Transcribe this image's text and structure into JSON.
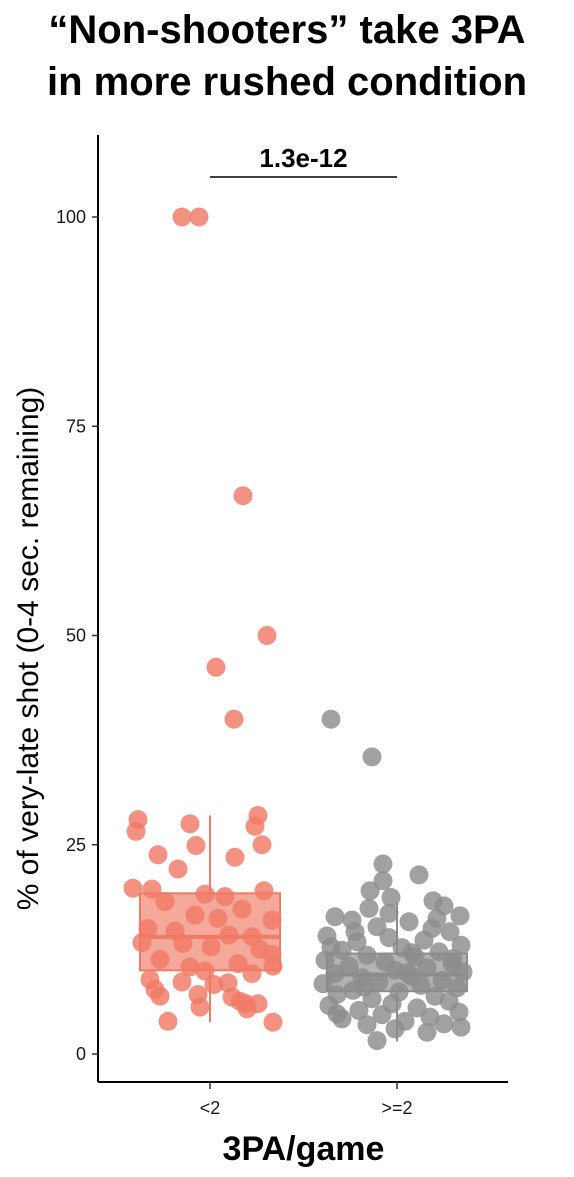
{
  "title_lines": [
    "“Non-shooters” take 3PA",
    "in more rushed condition"
  ],
  "chart_data": {
    "type": "boxplot-jitter",
    "title": "“Non-shooters” take 3PA in more rushed condition",
    "xlabel": "3PA/game",
    "ylabel": "% of very-late shot (0-4 sec. remaining)",
    "ylim": [
      -3,
      110
    ],
    "yticks": [
      0,
      25,
      50,
      75,
      100
    ],
    "categories": [
      "<2",
      ">=2"
    ],
    "colors": {
      "<2": "#f07a66",
      ">=2": "#8c8c8c",
      "<2_box_fill": "#f5a99b",
      ">=2_box_fill": "#b3b3b3"
    },
    "annotation": {
      "text": "1.3e-12",
      "between": [
        "<2",
        ">=2"
      ],
      "type": "significance-bracket"
    },
    "series": [
      {
        "name": "<2",
        "box": {
          "q1": 10,
          "median": 14,
          "q3": 19.2,
          "whisker_low": 3.8,
          "whisker_high": 28.5
        },
        "points": [
          {
            "jitter": -0.28,
            "y": 100
          },
          {
            "jitter": -0.11,
            "y": 100
          },
          {
            "jitter": 0.33,
            "y": 66.7
          },
          {
            "jitter": 0.57,
            "y": 50
          },
          {
            "jitter": 0.06,
            "y": 46.2
          },
          {
            "jitter": 0.24,
            "y": 40
          },
          {
            "jitter": -0.72,
            "y": 28
          },
          {
            "jitter": -0.2,
            "y": 27.5
          },
          {
            "jitter": 0.48,
            "y": 28.5
          },
          {
            "jitter": 0.45,
            "y": 27.2
          },
          {
            "jitter": -0.74,
            "y": 26.6
          },
          {
            "jitter": -0.14,
            "y": 24.9
          },
          {
            "jitter": 0.52,
            "y": 25
          },
          {
            "jitter": -0.52,
            "y": 23.8
          },
          {
            "jitter": 0.25,
            "y": 23.5
          },
          {
            "jitter": -0.32,
            "y": 22.1
          },
          {
            "jitter": -0.77,
            "y": 19.8
          },
          {
            "jitter": -0.58,
            "y": 19.7
          },
          {
            "jitter": 0.54,
            "y": 19.5
          },
          {
            "jitter": -0.05,
            "y": 19.1
          },
          {
            "jitter": 0.15,
            "y": 18.8
          },
          {
            "jitter": -0.45,
            "y": 18.2
          },
          {
            "jitter": 0.32,
            "y": 17.3
          },
          {
            "jitter": -0.15,
            "y": 16.6
          },
          {
            "jitter": 0.08,
            "y": 16.2
          },
          {
            "jitter": 0.62,
            "y": 16
          },
          {
            "jitter": -0.62,
            "y": 15
          },
          {
            "jitter": -0.35,
            "y": 14.7
          },
          {
            "jitter": 0.19,
            "y": 14.2
          },
          {
            "jitter": 0.42,
            "y": 14
          },
          {
            "jitter": -0.68,
            "y": 13.3
          },
          {
            "jitter": -0.27,
            "y": 13.2
          },
          {
            "jitter": 0.01,
            "y": 12.8
          },
          {
            "jitter": 0.5,
            "y": 12.5
          },
          {
            "jitter": 0.62,
            "y": 11.9
          },
          {
            "jitter": -0.5,
            "y": 11.3
          },
          {
            "jitter": 0.28,
            "y": 10.8
          },
          {
            "jitter": -0.2,
            "y": 10.4
          },
          {
            "jitter": 0.63,
            "y": 10.5
          },
          {
            "jitter": -0.05,
            "y": 9.9
          },
          {
            "jitter": 0.42,
            "y": 9.6
          },
          {
            "jitter": -0.6,
            "y": 8.9
          },
          {
            "jitter": -0.28,
            "y": 8.6
          },
          {
            "jitter": 0.18,
            "y": 8.5
          },
          {
            "jitter": 0.04,
            "y": 8.3
          },
          {
            "jitter": -0.55,
            "y": 7.7
          },
          {
            "jitter": -0.12,
            "y": 7.1
          },
          {
            "jitter": -0.5,
            "y": 6.9
          },
          {
            "jitter": 0.22,
            "y": 6.8
          },
          {
            "jitter": 0.3,
            "y": 6.3
          },
          {
            "jitter": 0.36,
            "y": 6
          },
          {
            "jitter": 0.48,
            "y": 6
          },
          {
            "jitter": -0.1,
            "y": 5.6
          },
          {
            "jitter": 0.37,
            "y": 5.4
          },
          {
            "jitter": -0.42,
            "y": 3.9
          },
          {
            "jitter": 0.63,
            "y": 3.8
          }
        ]
      },
      {
        "name": ">=2",
        "box": {
          "q1": 7.5,
          "median": 9.5,
          "q3": 12,
          "whisker_low": 1.5,
          "whisker_high": 18
        },
        "points": [
          {
            "jitter": -0.66,
            "y": 40
          },
          {
            "jitter": -0.25,
            "y": 35.5
          },
          {
            "jitter": -0.14,
            "y": 22.7
          },
          {
            "jitter": 0.22,
            "y": 21.4
          },
          {
            "jitter": -0.14,
            "y": 20.7
          },
          {
            "jitter": -0.27,
            "y": 19.5
          },
          {
            "jitter": -0.06,
            "y": 18.7
          },
          {
            "jitter": 0.36,
            "y": 18.3
          },
          {
            "jitter": -0.28,
            "y": 17.4
          },
          {
            "jitter": 0.47,
            "y": 17.7
          },
          {
            "jitter": 0.63,
            "y": 16.5
          },
          {
            "jitter": -0.62,
            "y": 16.4
          },
          {
            "jitter": -0.45,
            "y": 16
          },
          {
            "jitter": 0.12,
            "y": 15.8
          },
          {
            "jitter": -0.2,
            "y": 15.2
          },
          {
            "jitter": 0.35,
            "y": 15
          },
          {
            "jitter": 0.53,
            "y": 14.6
          },
          {
            "jitter": -0.7,
            "y": 14.1
          },
          {
            "jitter": -0.08,
            "y": 13.9
          },
          {
            "jitter": 0.27,
            "y": 13.6
          },
          {
            "jitter": -0.4,
            "y": 13.4
          },
          {
            "jitter": 0.64,
            "y": 13
          },
          {
            "jitter": 0.05,
            "y": 12.7
          },
          {
            "jitter": -0.55,
            "y": 12.4
          },
          {
            "jitter": 0.42,
            "y": 12.2
          },
          {
            "jitter": -0.3,
            "y": 11.8
          },
          {
            "jitter": 0.18,
            "y": 11.6
          },
          {
            "jitter": -0.72,
            "y": 11.2
          },
          {
            "jitter": -0.12,
            "y": 11
          },
          {
            "jitter": 0.55,
            "y": 10.8
          },
          {
            "jitter": -0.48,
            "y": 10.5
          },
          {
            "jitter": 0.3,
            "y": 10.3
          },
          {
            "jitter": -0.02,
            "y": 10
          },
          {
            "jitter": 0.66,
            "y": 9.8
          },
          {
            "jitter": -0.62,
            "y": 9.6
          },
          {
            "jitter": 0.14,
            "y": 9.3
          },
          {
            "jitter": -0.35,
            "y": 9.1
          },
          {
            "jitter": 0.45,
            "y": 8.8
          },
          {
            "jitter": -0.18,
            "y": 8.6
          },
          {
            "jitter": -0.74,
            "y": 8.4
          },
          {
            "jitter": 0.24,
            "y": 8.2
          },
          {
            "jitter": 0.6,
            "y": 7.9
          },
          {
            "jitter": -0.44,
            "y": 7.6
          },
          {
            "jitter": 0.02,
            "y": 7.4
          },
          {
            "jitter": -0.6,
            "y": 7.1
          },
          {
            "jitter": 0.38,
            "y": 6.9
          },
          {
            "jitter": -0.25,
            "y": 6.6
          },
          {
            "jitter": 0.52,
            "y": 6.3
          },
          {
            "jitter": -0.05,
            "y": 6
          },
          {
            "jitter": -0.68,
            "y": 5.8
          },
          {
            "jitter": 0.2,
            "y": 5.5
          },
          {
            "jitter": -0.38,
            "y": 5.2
          },
          {
            "jitter": 0.62,
            "y": 5
          },
          {
            "jitter": -0.15,
            "y": 4.7
          },
          {
            "jitter": 0.33,
            "y": 4.4
          },
          {
            "jitter": -0.55,
            "y": 4.2
          },
          {
            "jitter": 0.08,
            "y": 3.9
          },
          {
            "jitter": 0.47,
            "y": 3.6
          },
          {
            "jitter": -0.3,
            "y": 3.5
          },
          {
            "jitter": 0.64,
            "y": 3.2
          },
          {
            "jitter": -0.02,
            "y": 3
          },
          {
            "jitter": 0.3,
            "y": 2.6
          },
          {
            "jitter": -0.2,
            "y": 1.6
          },
          {
            "jitter": -0.6,
            "y": 4.8
          },
          {
            "jitter": 0.15,
            "y": 12.1
          },
          {
            "jitter": -0.42,
            "y": 14.6
          },
          {
            "jitter": 0.56,
            "y": 11.4
          },
          {
            "jitter": -0.08,
            "y": 16.8
          },
          {
            "jitter": 0.4,
            "y": 16.2
          },
          {
            "jitter": -0.66,
            "y": 12.8
          },
          {
            "jitter": 0.1,
            "y": 9.7
          },
          {
            "jitter": -0.33,
            "y": 8
          }
        ]
      }
    ]
  }
}
